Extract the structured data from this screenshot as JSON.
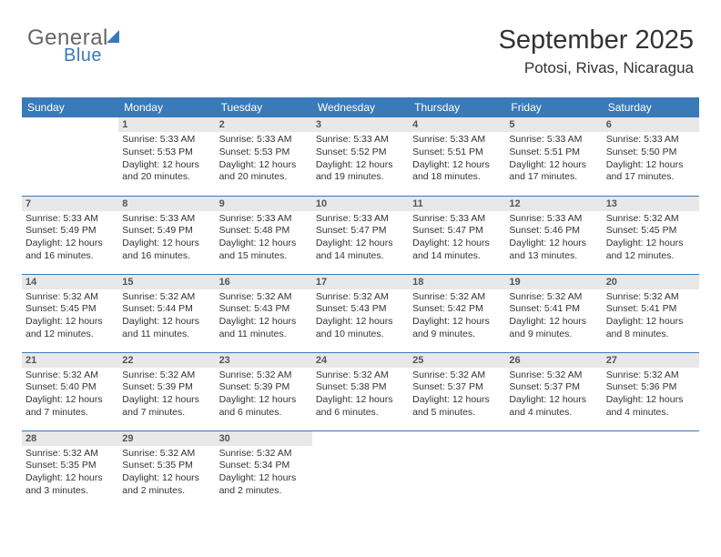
{
  "logo": {
    "line1": "General",
    "line2": "Blue"
  },
  "header": {
    "month_title": "September 2025",
    "location": "Potosi, Rivas, Nicaragua",
    "title_fontsize": 29,
    "location_fontsize": 17,
    "title_color": "#333333"
  },
  "calendar": {
    "header_bg": "#3a7ab8",
    "header_text_color": "#ffffff",
    "daynum_bg": "#e8e8e8",
    "border_color": "#3a7ab8",
    "text_color": "#333333",
    "cell_fontsize": 10.5,
    "day_headers": [
      "Sunday",
      "Monday",
      "Tuesday",
      "Wednesday",
      "Thursday",
      "Friday",
      "Saturday"
    ],
    "first_weekday": 1,
    "days_in_month": 30,
    "days": {
      "1": {
        "sunrise": "5:33 AM",
        "sunset": "5:53 PM",
        "daylight": "12 hours and 20 minutes."
      },
      "2": {
        "sunrise": "5:33 AM",
        "sunset": "5:53 PM",
        "daylight": "12 hours and 20 minutes."
      },
      "3": {
        "sunrise": "5:33 AM",
        "sunset": "5:52 PM",
        "daylight": "12 hours and 19 minutes."
      },
      "4": {
        "sunrise": "5:33 AM",
        "sunset": "5:51 PM",
        "daylight": "12 hours and 18 minutes."
      },
      "5": {
        "sunrise": "5:33 AM",
        "sunset": "5:51 PM",
        "daylight": "12 hours and 17 minutes."
      },
      "6": {
        "sunrise": "5:33 AM",
        "sunset": "5:50 PM",
        "daylight": "12 hours and 17 minutes."
      },
      "7": {
        "sunrise": "5:33 AM",
        "sunset": "5:49 PM",
        "daylight": "12 hours and 16 minutes."
      },
      "8": {
        "sunrise": "5:33 AM",
        "sunset": "5:49 PM",
        "daylight": "12 hours and 16 minutes."
      },
      "9": {
        "sunrise": "5:33 AM",
        "sunset": "5:48 PM",
        "daylight": "12 hours and 15 minutes."
      },
      "10": {
        "sunrise": "5:33 AM",
        "sunset": "5:47 PM",
        "daylight": "12 hours and 14 minutes."
      },
      "11": {
        "sunrise": "5:33 AM",
        "sunset": "5:47 PM",
        "daylight": "12 hours and 14 minutes."
      },
      "12": {
        "sunrise": "5:33 AM",
        "sunset": "5:46 PM",
        "daylight": "12 hours and 13 minutes."
      },
      "13": {
        "sunrise": "5:32 AM",
        "sunset": "5:45 PM",
        "daylight": "12 hours and 12 minutes."
      },
      "14": {
        "sunrise": "5:32 AM",
        "sunset": "5:45 PM",
        "daylight": "12 hours and 12 minutes."
      },
      "15": {
        "sunrise": "5:32 AM",
        "sunset": "5:44 PM",
        "daylight": "12 hours and 11 minutes."
      },
      "16": {
        "sunrise": "5:32 AM",
        "sunset": "5:43 PM",
        "daylight": "12 hours and 11 minutes."
      },
      "17": {
        "sunrise": "5:32 AM",
        "sunset": "5:43 PM",
        "daylight": "12 hours and 10 minutes."
      },
      "18": {
        "sunrise": "5:32 AM",
        "sunset": "5:42 PM",
        "daylight": "12 hours and 9 minutes."
      },
      "19": {
        "sunrise": "5:32 AM",
        "sunset": "5:41 PM",
        "daylight": "12 hours and 9 minutes."
      },
      "20": {
        "sunrise": "5:32 AM",
        "sunset": "5:41 PM",
        "daylight": "12 hours and 8 minutes."
      },
      "21": {
        "sunrise": "5:32 AM",
        "sunset": "5:40 PM",
        "daylight": "12 hours and 7 minutes."
      },
      "22": {
        "sunrise": "5:32 AM",
        "sunset": "5:39 PM",
        "daylight": "12 hours and 7 minutes."
      },
      "23": {
        "sunrise": "5:32 AM",
        "sunset": "5:39 PM",
        "daylight": "12 hours and 6 minutes."
      },
      "24": {
        "sunrise": "5:32 AM",
        "sunset": "5:38 PM",
        "daylight": "12 hours and 6 minutes."
      },
      "25": {
        "sunrise": "5:32 AM",
        "sunset": "5:37 PM",
        "daylight": "12 hours and 5 minutes."
      },
      "26": {
        "sunrise": "5:32 AM",
        "sunset": "5:37 PM",
        "daylight": "12 hours and 4 minutes."
      },
      "27": {
        "sunrise": "5:32 AM",
        "sunset": "5:36 PM",
        "daylight": "12 hours and 4 minutes."
      },
      "28": {
        "sunrise": "5:32 AM",
        "sunset": "5:35 PM",
        "daylight": "12 hours and 3 minutes."
      },
      "29": {
        "sunrise": "5:32 AM",
        "sunset": "5:35 PM",
        "daylight": "12 hours and 2 minutes."
      },
      "30": {
        "sunrise": "5:32 AM",
        "sunset": "5:34 PM",
        "daylight": "12 hours and 2 minutes."
      }
    }
  }
}
